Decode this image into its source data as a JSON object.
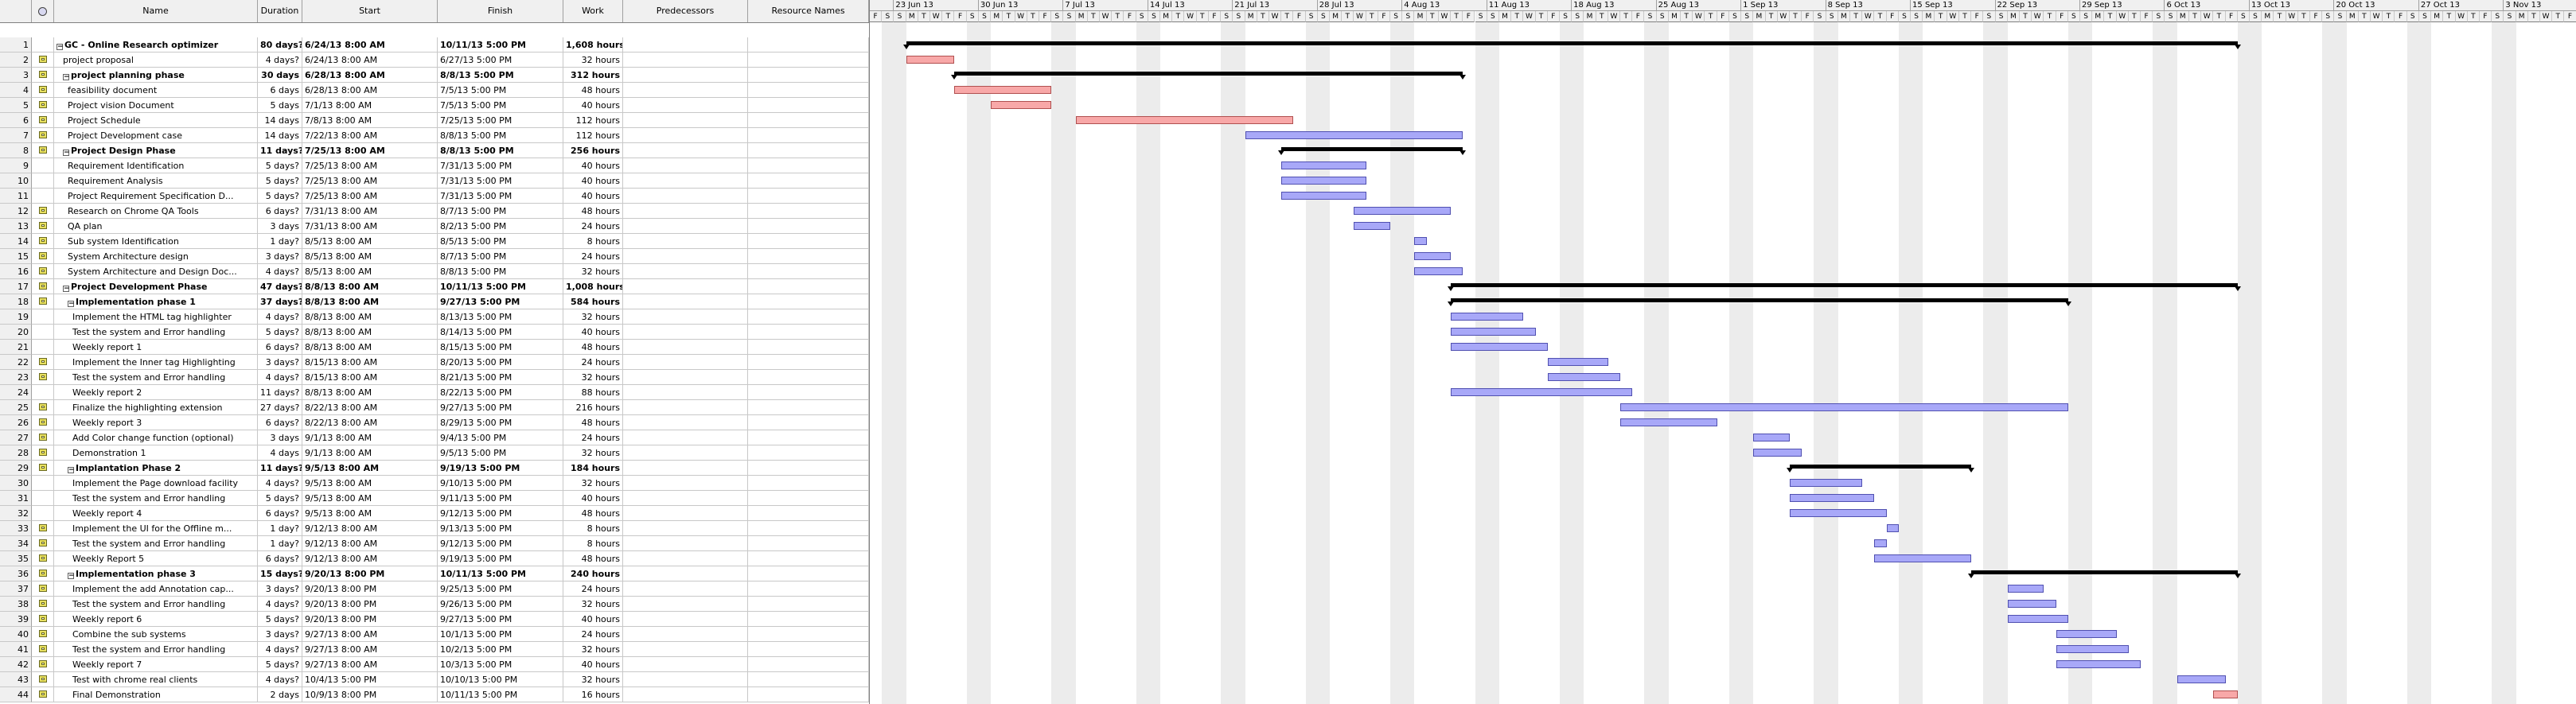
{
  "columns": {
    "indicators_icon": "info-icon",
    "name": "Name",
    "duration": "Duration",
    "start": "Start",
    "finish": "Finish",
    "work": "Work",
    "predecessors": "Predecessors",
    "resource_names": "Resource Names"
  },
  "colors": {
    "normal_bar": "#a8a8f8",
    "critical_bar": "#f8a8a8",
    "summary_bar": "#000000"
  },
  "timeline": {
    "weeks": [
      "23 Jun 13",
      "30 Jun 13",
      "7 Jul 13",
      "14 Jul 13",
      "21 Jul 13",
      "28 Jul 13",
      "4 Aug 13",
      "11 Aug 13",
      "18 Aug 13",
      "25 Aug 13",
      "1 Sep 13",
      "8 Sep 13",
      "15 Sep 13",
      "22 Sep 13",
      "29 Sep 13",
      "6 Oct 13",
      "13 Oct 13",
      "20 Oct 13",
      "27 Oct 13",
      "3 Nov 13"
    ],
    "day_letters": [
      "F",
      "S",
      "S",
      "M",
      "T",
      "W",
      "T"
    ],
    "leading_days": [
      "F",
      "S"
    ]
  },
  "tasks": [
    {
      "id": "1",
      "name": "GC - Online Research optimizer",
      "duration": "80 days?",
      "start": "6/24/13 8:00 AM",
      "finish": "10/11/13 5:00 PM",
      "work": "1,608 hours",
      "summary": true,
      "level": 0,
      "note": false,
      "bar_start": "2013-06-24",
      "bar_end": "2013-10-11"
    },
    {
      "id": "2",
      "name": "project proposal",
      "duration": "4 days?",
      "start": "6/24/13 8:00 AM",
      "finish": "6/27/13 5:00 PM",
      "work": "32 hours",
      "level": 1,
      "note": true,
      "critical": true,
      "bar_start": "2013-06-24",
      "bar_end": "2013-06-27"
    },
    {
      "id": "3",
      "name": "project planning  phase",
      "duration": "30 days",
      "start": "6/28/13 8:00 AM",
      "finish": "8/8/13 5:00 PM",
      "work": "312 hours",
      "summary": true,
      "level": 1,
      "note": true,
      "bar_start": "2013-06-28",
      "bar_end": "2013-08-08"
    },
    {
      "id": "4",
      "name": "feasibility document",
      "duration": "6 days",
      "start": "6/28/13 8:00 AM",
      "finish": "7/5/13 5:00 PM",
      "work": "48 hours",
      "level": 2,
      "note": true,
      "critical": true,
      "bar_start": "2013-06-28",
      "bar_end": "2013-07-05"
    },
    {
      "id": "5",
      "name": "Project vision Document",
      "duration": "5 days",
      "start": "7/1/13 8:00 AM",
      "finish": "7/5/13 5:00 PM",
      "work": "40 hours",
      "level": 2,
      "note": true,
      "critical": true,
      "bar_start": "2013-07-01",
      "bar_end": "2013-07-05"
    },
    {
      "id": "6",
      "name": "Project Schedule",
      "duration": "14 days",
      "start": "7/8/13 8:00 AM",
      "finish": "7/25/13 5:00 PM",
      "work": "112 hours",
      "level": 2,
      "note": true,
      "critical": true,
      "bar_start": "2013-07-08",
      "bar_end": "2013-07-25"
    },
    {
      "id": "7",
      "name": "Project Development case",
      "duration": "14 days",
      "start": "7/22/13 8:00 AM",
      "finish": "8/8/13 5:00 PM",
      "work": "112 hours",
      "level": 2,
      "note": true,
      "bar_start": "2013-07-22",
      "bar_end": "2013-08-08"
    },
    {
      "id": "8",
      "name": "Project Design Phase",
      "duration": "11 days?",
      "start": "7/25/13 8:00 AM",
      "finish": "8/8/13 5:00 PM",
      "work": "256 hours",
      "summary": true,
      "level": 1,
      "note": true,
      "bar_start": "2013-07-25",
      "bar_end": "2013-08-08"
    },
    {
      "id": "9",
      "name": "Requirement Identification",
      "duration": "5 days?",
      "start": "7/25/13 8:00 AM",
      "finish": "7/31/13 5:00 PM",
      "work": "40 hours",
      "level": 2,
      "note": false,
      "bar_start": "2013-07-25",
      "bar_end": "2013-07-31"
    },
    {
      "id": "10",
      "name": "Requirement Analysis",
      "duration": "5 days?",
      "start": "7/25/13 8:00 AM",
      "finish": "7/31/13 5:00 PM",
      "work": "40 hours",
      "level": 2,
      "note": false,
      "bar_start": "2013-07-25",
      "bar_end": "2013-07-31"
    },
    {
      "id": "11",
      "name": "Project Requirement Specification D...",
      "duration": "5 days?",
      "start": "7/25/13 8:00 AM",
      "finish": "7/31/13 5:00 PM",
      "work": "40 hours",
      "level": 2,
      "note": false,
      "bar_start": "2013-07-25",
      "bar_end": "2013-07-31"
    },
    {
      "id": "12",
      "name": "Research on Chrome QA Tools",
      "duration": "6 days?",
      "start": "7/31/13 8:00 AM",
      "finish": "8/7/13 5:00 PM",
      "work": "48 hours",
      "level": 2,
      "note": true,
      "bar_start": "2013-07-31",
      "bar_end": "2013-08-07"
    },
    {
      "id": "13",
      "name": "QA plan",
      "duration": "3 days",
      "start": "7/31/13 8:00 AM",
      "finish": "8/2/13 5:00 PM",
      "work": "24 hours",
      "level": 2,
      "note": true,
      "bar_start": "2013-07-31",
      "bar_end": "2013-08-02"
    },
    {
      "id": "14",
      "name": "Sub system Identification",
      "duration": "1 day?",
      "start": "8/5/13 8:00 AM",
      "finish": "8/5/13 5:00 PM",
      "work": "8 hours",
      "level": 2,
      "note": true,
      "bar_start": "2013-08-05",
      "bar_end": "2013-08-05"
    },
    {
      "id": "15",
      "name": "System Architecture design",
      "duration": "3 days?",
      "start": "8/5/13 8:00 AM",
      "finish": "8/7/13 5:00 PM",
      "work": "24 hours",
      "level": 2,
      "note": true,
      "bar_start": "2013-08-05",
      "bar_end": "2013-08-07"
    },
    {
      "id": "16",
      "name": "System Architecture and Design Doc...",
      "duration": "4 days?",
      "start": "8/5/13 8:00 AM",
      "finish": "8/8/13 5:00 PM",
      "work": "32 hours",
      "level": 2,
      "note": true,
      "bar_start": "2013-08-05",
      "bar_end": "2013-08-08"
    },
    {
      "id": "17",
      "name": "Project Development Phase",
      "duration": "47 days?",
      "start": "8/8/13 8:00 AM",
      "finish": "10/11/13 5:00 PM",
      "work": "1,008 hours",
      "summary": true,
      "level": 1,
      "note": true,
      "bar_start": "2013-08-08",
      "bar_end": "2013-10-11"
    },
    {
      "id": "18",
      "name": "Implementation phase 1",
      "duration": "37 days?",
      "start": "8/8/13 8:00 AM",
      "finish": "9/27/13 5:00 PM",
      "work": "584 hours",
      "summary": true,
      "level": 2,
      "note": true,
      "bar_start": "2013-08-08",
      "bar_end": "2013-09-27"
    },
    {
      "id": "19",
      "name": "Implement the HTML tag highlighter",
      "duration": "4 days?",
      "start": "8/8/13 8:00 AM",
      "finish": "8/13/13 5:00 PM",
      "work": "32 hours",
      "level": 3,
      "note": false,
      "bar_start": "2013-08-08",
      "bar_end": "2013-08-13"
    },
    {
      "id": "20",
      "name": "Test the system and Error handling",
      "duration": "5 days?",
      "start": "8/8/13 8:00 AM",
      "finish": "8/14/13 5:00 PM",
      "work": "40 hours",
      "level": 3,
      "note": false,
      "bar_start": "2013-08-08",
      "bar_end": "2013-08-14"
    },
    {
      "id": "21",
      "name": "Weekly report 1",
      "duration": "6 days?",
      "start": "8/8/13 8:00 AM",
      "finish": "8/15/13 5:00 PM",
      "work": "48 hours",
      "level": 3,
      "note": false,
      "bar_start": "2013-08-08",
      "bar_end": "2013-08-15"
    },
    {
      "id": "22",
      "name": "Implement the Inner tag Highlighting",
      "duration": "3 days?",
      "start": "8/15/13 8:00 AM",
      "finish": "8/20/13 5:00 PM",
      "work": "24 hours",
      "level": 3,
      "note": true,
      "bar_start": "2013-08-16",
      "bar_end": "2013-08-20"
    },
    {
      "id": "23",
      "name": "Test the system and Error handling",
      "duration": "4 days?",
      "start": "8/15/13 8:00 AM",
      "finish": "8/21/13 5:00 PM",
      "work": "32 hours",
      "level": 3,
      "note": true,
      "bar_start": "2013-08-16",
      "bar_end": "2013-08-21"
    },
    {
      "id": "24",
      "name": "Weekly report 2",
      "duration": "11 days?",
      "start": "8/8/13 8:00 AM",
      "finish": "8/22/13 5:00 PM",
      "work": "88 hours",
      "level": 3,
      "note": false,
      "bar_start": "2013-08-08",
      "bar_end": "2013-08-22"
    },
    {
      "id": "25",
      "name": "Finalize the highlighting extension",
      "duration": "27 days?",
      "start": "8/22/13 8:00 AM",
      "finish": "9/27/13 5:00 PM",
      "work": "216 hours",
      "level": 3,
      "note": true,
      "bar_start": "2013-08-22",
      "bar_end": "2013-09-27"
    },
    {
      "id": "26",
      "name": "Weekly report 3",
      "duration": "6 days?",
      "start": "8/22/13 8:00 AM",
      "finish": "8/29/13 5:00 PM",
      "work": "48 hours",
      "level": 3,
      "note": true,
      "bar_start": "2013-08-22",
      "bar_end": "2013-08-29"
    },
    {
      "id": "27",
      "name": "Add Color change function (optional)",
      "duration": "3 days",
      "start": "9/1/13 8:00 AM",
      "finish": "9/4/13 5:00 PM",
      "work": "24 hours",
      "level": 3,
      "note": true,
      "bar_start": "2013-09-02",
      "bar_end": "2013-09-04"
    },
    {
      "id": "28",
      "name": "Demonstration 1",
      "duration": "4 days",
      "start": "9/1/13 8:00 AM",
      "finish": "9/5/13 5:00 PM",
      "work": "32 hours",
      "level": 3,
      "note": true,
      "bar_start": "2013-09-02",
      "bar_end": "2013-09-05"
    },
    {
      "id": "29",
      "name": "Implantation Phase 2",
      "duration": "11 days?",
      "start": "9/5/13 8:00 AM",
      "finish": "9/19/13 5:00 PM",
      "work": "184 hours",
      "summary": true,
      "level": 2,
      "note": true,
      "bar_start": "2013-09-05",
      "bar_end": "2013-09-19"
    },
    {
      "id": "30",
      "name": "Implement the Page download facility",
      "duration": "4 days?",
      "start": "9/5/13 8:00 AM",
      "finish": "9/10/13 5:00 PM",
      "work": "32 hours",
      "level": 3,
      "note": false,
      "bar_start": "2013-09-05",
      "bar_end": "2013-09-10"
    },
    {
      "id": "31",
      "name": "Test the system and Error handling",
      "duration": "5 days?",
      "start": "9/5/13 8:00 AM",
      "finish": "9/11/13 5:00 PM",
      "work": "40 hours",
      "level": 3,
      "note": false,
      "bar_start": "2013-09-05",
      "bar_end": "2013-09-11"
    },
    {
      "id": "32",
      "name": "Weekly report 4",
      "duration": "6 days?",
      "start": "9/5/13 8:00 AM",
      "finish": "9/12/13 5:00 PM",
      "work": "48 hours",
      "level": 3,
      "note": false,
      "bar_start": "2013-09-05",
      "bar_end": "2013-09-12"
    },
    {
      "id": "33",
      "name": "Implement the UI for the Offline m...",
      "duration": "1 day?",
      "start": "9/12/13 8:00 AM",
      "finish": "9/13/13 5:00 PM",
      "work": "8 hours",
      "level": 3,
      "note": true,
      "bar_start": "2013-09-13",
      "bar_end": "2013-09-13"
    },
    {
      "id": "34",
      "name": "Test the system and Error handling",
      "duration": "1 day?",
      "start": "9/12/13 8:00 AM",
      "finish": "9/12/13 5:00 PM",
      "work": "8 hours",
      "level": 3,
      "note": true,
      "bar_start": "2013-09-12",
      "bar_end": "2013-09-12"
    },
    {
      "id": "35",
      "name": "Weekly Report 5",
      "duration": "6 days?",
      "start": "9/12/13 8:00 AM",
      "finish": "9/19/13 5:00 PM",
      "work": "48 hours",
      "level": 3,
      "note": true,
      "bar_start": "2013-09-12",
      "bar_end": "2013-09-19"
    },
    {
      "id": "36",
      "name": "Implementation phase  3",
      "duration": "15 days?",
      "start": "9/20/13 8:00 PM",
      "finish": "10/11/13 5:00 PM",
      "work": "240 hours",
      "summary": true,
      "level": 2,
      "note": true,
      "bar_start": "2013-09-20",
      "bar_end": "2013-10-11"
    },
    {
      "id": "37",
      "name": "Implement the add Annotation cap...",
      "duration": "3 days?",
      "start": "9/20/13 8:00 PM",
      "finish": "9/25/13 5:00 PM",
      "work": "24 hours",
      "level": 3,
      "note": true,
      "bar_start": "2013-09-23",
      "bar_end": "2013-09-25"
    },
    {
      "id": "38",
      "name": "Test the system and Error handling",
      "duration": "4 days?",
      "start": "9/20/13 8:00 PM",
      "finish": "9/26/13 5:00 PM",
      "work": "32 hours",
      "level": 3,
      "note": true,
      "bar_start": "2013-09-23",
      "bar_end": "2013-09-26"
    },
    {
      "id": "39",
      "name": "Weekly report 6",
      "duration": "5 days?",
      "start": "9/20/13 8:00 PM",
      "finish": "9/27/13 5:00 PM",
      "work": "40 hours",
      "level": 3,
      "note": true,
      "bar_start": "2013-09-23",
      "bar_end": "2013-09-27"
    },
    {
      "id": "40",
      "name": "Combine the sub systems",
      "duration": "3 days?",
      "start": "9/27/13 8:00 AM",
      "finish": "10/1/13 5:00 PM",
      "work": "24 hours",
      "level": 3,
      "note": true,
      "bar_start": "2013-09-27",
      "bar_end": "2013-10-01"
    },
    {
      "id": "41",
      "name": "Test the system and Error handling",
      "duration": "4 days?",
      "start": "9/27/13 8:00 AM",
      "finish": "10/2/13 5:00 PM",
      "work": "32 hours",
      "level": 3,
      "note": true,
      "bar_start": "2013-09-27",
      "bar_end": "2013-10-02"
    },
    {
      "id": "42",
      "name": "Weekly report 7",
      "duration": "5 days?",
      "start": "9/27/13 8:00 AM",
      "finish": "10/3/13 5:00 PM",
      "work": "40 hours",
      "level": 3,
      "note": true,
      "bar_start": "2013-09-27",
      "bar_end": "2013-10-03"
    },
    {
      "id": "43",
      "name": "Test with chrome real clients",
      "duration": "4 days?",
      "start": "10/4/13 5:00 PM",
      "finish": "10/10/13 5:00 PM",
      "work": "32 hours",
      "level": 3,
      "note": true,
      "bar_start": "2013-10-07",
      "bar_end": "2013-10-10"
    },
    {
      "id": "44",
      "name": "Final Demonstration",
      "duration": "2 days",
      "start": "10/9/13 8:00 PM",
      "finish": "10/11/13 5:00 PM",
      "work": "16 hours",
      "level": 3,
      "note": true,
      "critical": true,
      "bar_start": "2013-10-10",
      "bar_end": "2013-10-11"
    }
  ]
}
